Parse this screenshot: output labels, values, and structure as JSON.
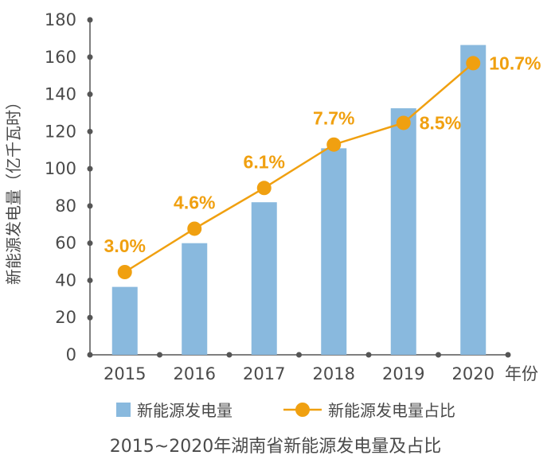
{
  "chart_data": {
    "type": "bar",
    "categories": [
      "2015",
      "2016",
      "2017",
      "2018",
      "2019",
      "2020"
    ],
    "series": [
      {
        "name": "新能源发电量",
        "type": "bar",
        "axis": "left",
        "values": [
          36.5,
          60,
          82,
          111,
          132.5,
          166.5
        ],
        "color": "#89b9de"
      },
      {
        "name": "新能源发电量占比",
        "type": "line",
        "axis": "right",
        "values": [
          3.0,
          4.6,
          6.1,
          7.7,
          8.5,
          10.7
        ],
        "labels": [
          "3.0%",
          "4.6%",
          "6.1%",
          "7.7%",
          "8.5%",
          "10.7%"
        ],
        "color": "#f0a010"
      }
    ],
    "ylabel": "新能源发电量（亿千瓦时）",
    "xlabel": "年份",
    "ylim": [
      0,
      180
    ],
    "yticks": [
      "0",
      "20",
      "40",
      "60",
      "80",
      "100",
      "120",
      "140",
      "160",
      "180"
    ],
    "caption": "2015~2020年湖南省新能源发电量及占比",
    "grid": false,
    "legend_position": "bottom",
    "axis_color": "#555555"
  }
}
